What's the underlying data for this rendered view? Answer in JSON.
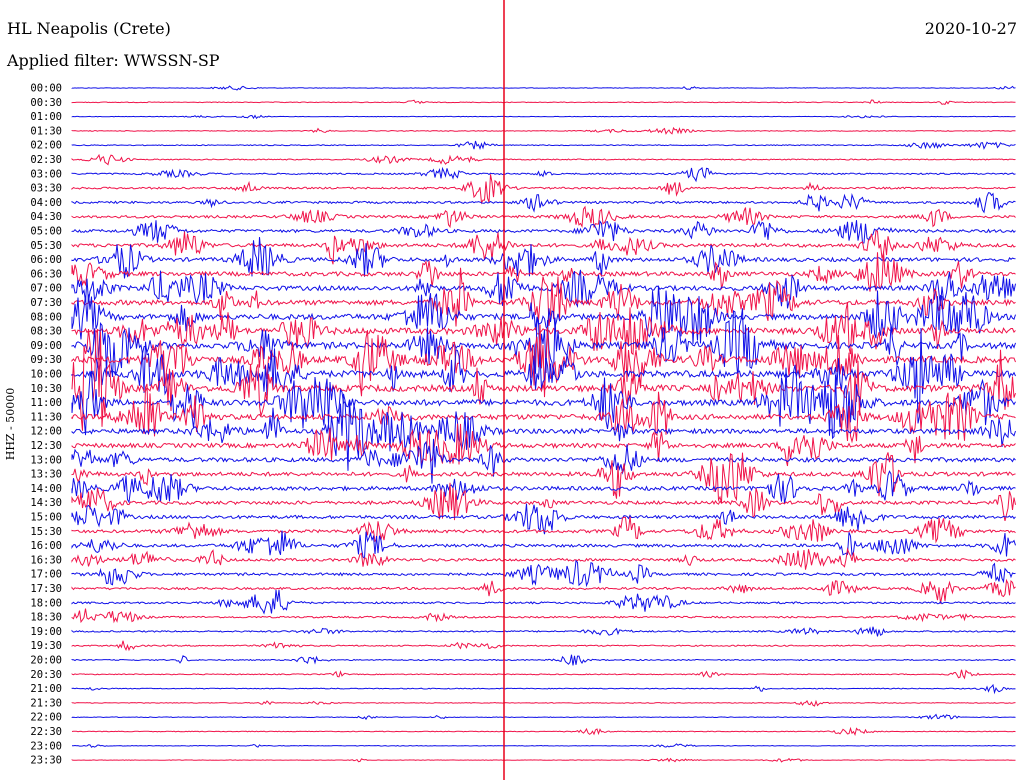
{
  "header": {
    "station": "HL Neapolis (Crete)",
    "filter": "Applied filter: WWSSN-SP",
    "date": "2020-10-27"
  },
  "chart_data": {
    "type": "line",
    "title": "HL Neapolis (Crete)",
    "ylabel": "HHZ - 50000",
    "row_labels": [
      "00:00",
      "00:30",
      "01:00",
      "01:30",
      "02:00",
      "02:30",
      "03:00",
      "03:30",
      "04:00",
      "04:30",
      "05:00",
      "05:30",
      "06:00",
      "06:30",
      "07:00",
      "07:30",
      "08:00",
      "08:30",
      "09:00",
      "09:30",
      "10:00",
      "10:30",
      "11:00",
      "11:30",
      "12:00",
      "12:30",
      "13:00",
      "13:30",
      "14:00",
      "14:30",
      "15:00",
      "15:30",
      "16:00",
      "16:30",
      "17:00",
      "17:30",
      "18:00",
      "18:30",
      "19:00",
      "19:30",
      "20:00",
      "20:30",
      "21:00",
      "21:30",
      "22:00",
      "22:30",
      "23:00",
      "23:30"
    ],
    "row_noise_level": [
      0.5,
      0.8,
      0.5,
      0.8,
      1.0,
      1.2,
      1.6,
      2.0,
      2.4,
      2.8,
      3.2,
      3.8,
      4.2,
      4.6,
      5.0,
      5.4,
      6.0,
      6.5,
      6.8,
      7.0,
      7.2,
      6.8,
      6.4,
      5.8,
      5.2,
      4.8,
      4.6,
      4.4,
      4.2,
      3.8,
      3.6,
      3.4,
      3.2,
      3.0,
      2.8,
      2.4,
      2.0,
      1.8,
      1.6,
      1.4,
      1.2,
      1.0,
      0.9,
      0.8,
      0.7,
      0.7,
      0.6,
      0.5
    ],
    "colors": {
      "even_rows": "#1010e8",
      "odd_rows": "#f0144a",
      "marker_line": "#e8001c"
    }
  }
}
